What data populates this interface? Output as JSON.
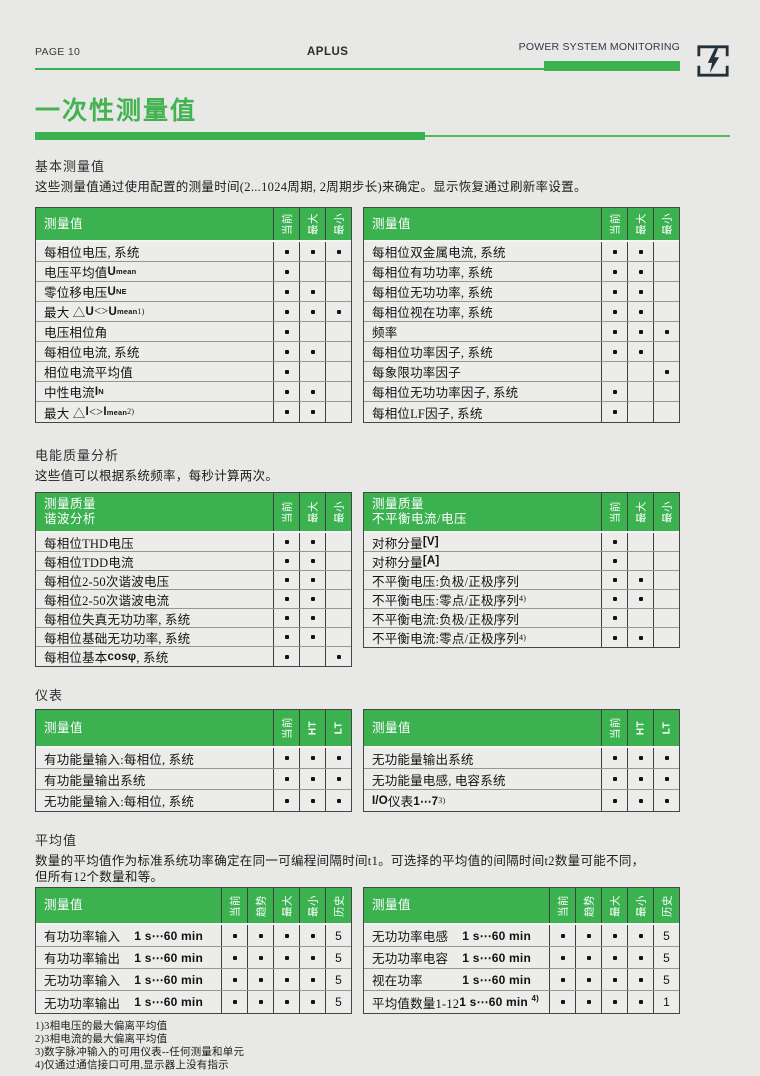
{
  "colors": {
    "green": "#3bb150",
    "title_green": "#43b351",
    "underline_light_green": "#55b95f",
    "logo_navy": "#24303c"
  },
  "header": {
    "page_label": "PAGE 10",
    "brand": "APLUS",
    "monitor_label": "POWER SYSTEM MONITORING",
    "logo_icon": "lightning-bolt"
  },
  "title": {
    "text": "一次性测量值"
  },
  "sections": [
    {
      "heading": "基本测量值",
      "description": [
        "这些测量值通过使用配置的测量时间(2...1024周期, 2周期步长)来确定。显示恢复通过刷新率设置。"
      ],
      "tables": [
        {
          "title_lines": [
            "测量值"
          ],
          "columns": [
            "当前",
            "最大",
            "最小"
          ],
          "rows": [
            {
              "label": "每相位电压, 系统",
              "cells": [
                "•",
                "•",
                "•"
              ]
            },
            {
              "label": "电压平均值 *U*~mean~",
              "cells": [
                "•",
                "",
                ""
              ]
            },
            {
              "label": "零位移电压 *U*~NE~",
              "cells": [
                "•",
                "•",
                ""
              ]
            },
            {
              "label": "最大  △*U* <> *U*~mean~^1)^",
              "cells": [
                "•",
                "•",
                "•"
              ]
            },
            {
              "label": "电压相位角",
              "cells": [
                "•",
                "",
                ""
              ]
            },
            {
              "label": "每相位电流, 系统",
              "cells": [
                "•",
                "•",
                ""
              ]
            },
            {
              "label": "相位电流平均值",
              "cells": [
                "•",
                "",
                ""
              ]
            },
            {
              "label": "中性电流 *I*~N~",
              "cells": [
                "•",
                "•",
                ""
              ]
            },
            {
              "label": "最大  △*I* <> *I*~mean~^2)^",
              "cells": [
                "•",
                "•",
                ""
              ]
            }
          ]
        },
        {
          "title_lines": [
            "测量值"
          ],
          "columns": [
            "当前",
            "最大",
            "最小"
          ],
          "rows": [
            {
              "label": "每相位双金属电流, 系统",
              "cells": [
                "•",
                "•",
                ""
              ]
            },
            {
              "label": "每相位有功功率, 系统",
              "cells": [
                "•",
                "•",
                ""
              ]
            },
            {
              "label": "每相位无功功率, 系统",
              "cells": [
                "•",
                "•",
                ""
              ]
            },
            {
              "label": "每相位视在功率, 系统",
              "cells": [
                "•",
                "•",
                ""
              ]
            },
            {
              "label": "频率",
              "cells": [
                "•",
                "•",
                "•"
              ]
            },
            {
              "label": "每相位功率因子, 系统",
              "cells": [
                "•",
                "•",
                ""
              ]
            },
            {
              "label": "每象限功率因子",
              "cells": [
                "",
                "",
                "•"
              ]
            },
            {
              "label": "每相位无功功率因子, 系统",
              "cells": [
                "•",
                "",
                ""
              ]
            },
            {
              "label": "每相位LF因子, 系统",
              "cells": [
                "•",
                "",
                ""
              ]
            }
          ]
        }
      ]
    },
    {
      "heading": "电能质量分析",
      "description": [
        "这些值可以根据系统频率，每秒计算两次。"
      ],
      "tables": [
        {
          "title_lines": [
            "测量质量",
            "谐波分析"
          ],
          "columns": [
            "当前",
            "最大",
            "最小"
          ],
          "rows": [
            {
              "label": "每相位THD电压",
              "cells": [
                "•",
                "•",
                ""
              ]
            },
            {
              "label": "每相位TDD电流",
              "cells": [
                "•",
                "•",
                ""
              ]
            },
            {
              "label": "每相位2-50次谐波电压",
              "cells": [
                "•",
                "•",
                ""
              ]
            },
            {
              "label": "每相位2-50次谐波电流",
              "cells": [
                "•",
                "•",
                ""
              ]
            },
            {
              "label": "每相位失真无功功率, 系统",
              "cells": [
                "•",
                "•",
                ""
              ]
            },
            {
              "label": "每相位基础无功功率, 系统",
              "cells": [
                "•",
                "•",
                ""
              ]
            },
            {
              "label": "每相位基本*cosφ*, 系统",
              "cells": [
                "•",
                "",
                "•"
              ]
            }
          ]
        },
        {
          "title_lines": [
            "测量质量",
            "不平衡电流/电压"
          ],
          "columns": [
            "当前",
            "最大",
            "最小"
          ],
          "rows": [
            {
              "label": "对称分量 *[V]*",
              "cells": [
                "•",
                "",
                ""
              ]
            },
            {
              "label": "对称分量 *[A]*",
              "cells": [
                "•",
                "",
                ""
              ]
            },
            {
              "label": "不平衡电压:负极/正极序列",
              "cells": [
                "•",
                "•",
                ""
              ]
            },
            {
              "label": "不平衡电压:零点/正极序列^4)^",
              "cells": [
                "•",
                "•",
                ""
              ]
            },
            {
              "label": "不平衡电流:负极/正极序列",
              "cells": [
                "•",
                "",
                ""
              ]
            },
            {
              "label": "不平衡电流:零点/正极序列^4)^",
              "cells": [
                "•",
                "•",
                ""
              ]
            }
          ]
        }
      ]
    },
    {
      "heading": "仪表",
      "description": [],
      "tables": [
        {
          "title_lines": [
            "测量值"
          ],
          "columns": [
            "当前",
            "HT",
            "LT"
          ],
          "rows": [
            {
              "label": "有功能量输入:每相位, 系统",
              "cells": [
                "•",
                "•",
                "•"
              ]
            },
            {
              "label": "有功能量输出系统",
              "cells": [
                "•",
                "•",
                "•"
              ]
            },
            {
              "label": "无功能量输入:每相位, 系统",
              "cells": [
                "•",
                "•",
                "•"
              ]
            }
          ]
        },
        {
          "title_lines": [
            "测量值"
          ],
          "columns": [
            "当前",
            "HT",
            "LT"
          ],
          "rows": [
            {
              "label": "无功能量输出系统",
              "cells": [
                "•",
                "•",
                "•"
              ]
            },
            {
              "label": "无功能量电感, 电容系统",
              "cells": [
                "•",
                "•",
                "•"
              ]
            },
            {
              "label": "*I/O*仪表 *1⋯7*^3)^",
              "cells": [
                "•",
                "•",
                "•"
              ]
            }
          ]
        }
      ]
    },
    {
      "heading": "平均值",
      "description": [
        "数量的平均值作为标准系统功率确定在同一可编程间隔时间t1。可选择的平均值的间隔时间t2数量可能不同，",
        "但所有12个数量和等。"
      ],
      "tables": [
        {
          "title_lines": [
            "测量值"
          ],
          "columns": [
            "当前",
            "趋势",
            "最大",
            "最小",
            "历史"
          ],
          "rows": [
            {
              "label": "有功功率输入",
              "range": "1 s⋯60 min",
              "cells": [
                "•",
                "•",
                "•",
                "•",
                "5"
              ]
            },
            {
              "label": "有功功率输出",
              "range": "1 s⋯60 min",
              "cells": [
                "•",
                "•",
                "•",
                "•",
                "5"
              ]
            },
            {
              "label": "无功功率输入",
              "range": "1 s⋯60 min",
              "cells": [
                "•",
                "•",
                "•",
                "•",
                "5"
              ]
            },
            {
              "label": "无功功率输出",
              "range": "1 s⋯60 min",
              "cells": [
                "•",
                "•",
                "•",
                "•",
                "5"
              ]
            }
          ]
        },
        {
          "title_lines": [
            "测量值"
          ],
          "columns": [
            "当前",
            "趋势",
            "最大",
            "最小",
            "历史"
          ],
          "rows": [
            {
              "label": "无功功率电感",
              "range": "1 s⋯60 min",
              "cells": [
                "•",
                "•",
                "•",
                "•",
                "5"
              ]
            },
            {
              "label": "无功功率电容",
              "range": "1 s⋯60 min",
              "cells": [
                "•",
                "•",
                "•",
                "•",
                "5"
              ]
            },
            {
              "label": "视在功率",
              "range": "1 s⋯60 min",
              "cells": [
                "•",
                "•",
                "•",
                "•",
                "5"
              ]
            },
            {
              "label": "平均值数量1-12",
              "range": "1 s⋯60 min ^4)^",
              "cells": [
                "•",
                "•",
                "•",
                "•",
                "1"
              ]
            }
          ]
        }
      ]
    }
  ],
  "footnotes": [
    "1)3相电压的最大偏离平均值",
    "2)3相电流的最大偏离平均值",
    "3)数字脉冲输入的可用仪表--任何测量和单元",
    "4)仅通过通信接口可用,显示器上没有指示"
  ]
}
